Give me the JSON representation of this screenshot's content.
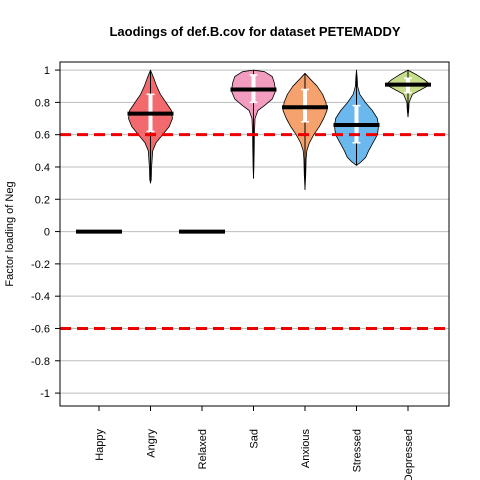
{
  "chart_data": {
    "type": "violin",
    "title": "Laodings of def.B.cov for dataset PETEMADDY",
    "xlabel": "",
    "ylabel": "Factor loading of Neg",
    "ylim": [
      -1.08,
      1.05
    ],
    "yticks": [
      "-1",
      "-0.8",
      "-0.6",
      "-0.4",
      "-0.2",
      "0",
      "0.2",
      "0.4",
      "0.6",
      "0.8",
      "1"
    ],
    "grid": "horizontal",
    "thresholds": [
      0.6,
      -0.6
    ],
    "threshold_color": "#ee0000",
    "categories": [
      "Happy",
      "Angry",
      "Relaxed",
      "Sad",
      "Anxious",
      "Stressed",
      "Depressed"
    ],
    "series": [
      {
        "category": "Happy",
        "color": null,
        "median": 0,
        "min": 0,
        "max": 0,
        "q1": 0,
        "q3": 0
      },
      {
        "category": "Angry",
        "color": "#f26a6d",
        "median": 0.73,
        "min": 0.3,
        "max": 1.0,
        "q1": 0.62,
        "q3": 0.85,
        "profile": [
          [
            0.3,
            0.0
          ],
          [
            0.32,
            0.03
          ],
          [
            0.4,
            0.05
          ],
          [
            0.5,
            0.1
          ],
          [
            0.55,
            0.25
          ],
          [
            0.6,
            0.55
          ],
          [
            0.65,
            0.85
          ],
          [
            0.7,
            1.0
          ],
          [
            0.75,
            0.95
          ],
          [
            0.8,
            0.7
          ],
          [
            0.85,
            0.45
          ],
          [
            0.9,
            0.28
          ],
          [
            0.95,
            0.15
          ],
          [
            1.0,
            0.0
          ]
        ]
      },
      {
        "category": "Relaxed",
        "color": null,
        "median": 0,
        "min": 0,
        "max": 0,
        "q1": 0,
        "q3": 0
      },
      {
        "category": "Sad",
        "color": "#f29dc0",
        "median": 0.88,
        "min": 0.33,
        "max": 1.0,
        "q1": 0.8,
        "q3": 0.97,
        "profile": [
          [
            0.33,
            0.0
          ],
          [
            0.4,
            0.02
          ],
          [
            0.5,
            0.03
          ],
          [
            0.6,
            0.04
          ],
          [
            0.7,
            0.07
          ],
          [
            0.75,
            0.2
          ],
          [
            0.78,
            0.5
          ],
          [
            0.82,
            0.85
          ],
          [
            0.87,
            1.0
          ],
          [
            0.92,
            0.95
          ],
          [
            0.96,
            0.85
          ],
          [
            0.99,
            0.5
          ],
          [
            1.0,
            0.0
          ]
        ]
      },
      {
        "category": "Anxious",
        "color": "#f6a26e",
        "median": 0.77,
        "min": 0.26,
        "max": 0.98,
        "q1": 0.68,
        "q3": 0.88,
        "profile": [
          [
            0.26,
            0.0
          ],
          [
            0.35,
            0.03
          ],
          [
            0.45,
            0.05
          ],
          [
            0.5,
            0.08
          ],
          [
            0.55,
            0.2
          ],
          [
            0.6,
            0.4
          ],
          [
            0.65,
            0.65
          ],
          [
            0.7,
            0.85
          ],
          [
            0.75,
            1.0
          ],
          [
            0.8,
            0.95
          ],
          [
            0.85,
            0.8
          ],
          [
            0.9,
            0.55
          ],
          [
            0.95,
            0.2
          ],
          [
            0.98,
            0.0
          ]
        ]
      },
      {
        "category": "Stressed",
        "color": "#6bb8ee",
        "median": 0.66,
        "min": 0.41,
        "max": 1.0,
        "q1": 0.55,
        "q3": 0.78,
        "profile": [
          [
            0.41,
            0.0
          ],
          [
            0.43,
            0.2
          ],
          [
            0.46,
            0.42
          ],
          [
            0.5,
            0.55
          ],
          [
            0.55,
            0.75
          ],
          [
            0.6,
            0.95
          ],
          [
            0.65,
            1.0
          ],
          [
            0.7,
            0.95
          ],
          [
            0.75,
            0.72
          ],
          [
            0.8,
            0.4
          ],
          [
            0.85,
            0.15
          ],
          [
            0.9,
            0.05
          ],
          [
            0.95,
            0.03
          ],
          [
            1.0,
            0.0
          ]
        ]
      },
      {
        "category": "Depressed",
        "color": "#c8dd8b",
        "median": 0.91,
        "min": 0.71,
        "max": 1.0,
        "q1": 0.86,
        "q3": 0.95,
        "profile": [
          [
            0.71,
            0.0
          ],
          [
            0.75,
            0.03
          ],
          [
            0.8,
            0.05
          ],
          [
            0.85,
            0.2
          ],
          [
            0.88,
            0.6
          ],
          [
            0.91,
            1.0
          ],
          [
            0.94,
            0.75
          ],
          [
            0.97,
            0.4
          ],
          [
            1.0,
            0.0
          ]
        ]
      }
    ]
  }
}
